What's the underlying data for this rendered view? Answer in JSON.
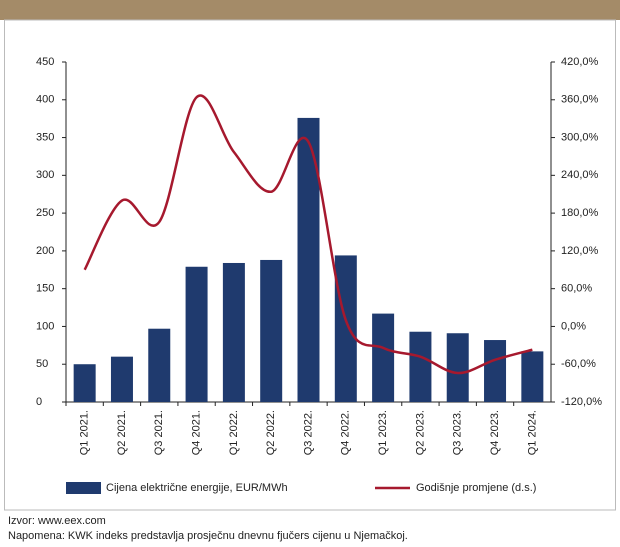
{
  "chart_data": {
    "type": "bar_line",
    "categories": [
      "Q1 2021.",
      "Q2 2021.",
      "Q3 2021.",
      "Q4 2021.",
      "Q1 2022.",
      "Q2 2022.",
      "Q3 2022.",
      "Q4 2022.",
      "Q1 2023.",
      "Q2 2023.",
      "Q3 2023.",
      "Q4 2023.",
      "Q1 2024."
    ],
    "series": [
      {
        "name": "Cijena električne energije, EUR/MWh",
        "color": "#1f3a6e",
        "type": "bar",
        "values": [
          50,
          60,
          97,
          179,
          184,
          188,
          376,
          194,
          117,
          93,
          91,
          82,
          67
        ]
      },
      {
        "name": "Godišnje promjene (d.s.)",
        "color": "#a6192e",
        "type": "line",
        "axis": "y2",
        "values": [
          90,
          200,
          166,
          364,
          277,
          214,
          293,
          10,
          -34,
          -48,
          -74,
          -53,
          -37
        ]
      }
    ],
    "ylim": [
      0,
      450
    ],
    "yticks": [
      0,
      50,
      100,
      150,
      200,
      250,
      300,
      350,
      400,
      450
    ],
    "y2lim": [
      -120,
      420
    ],
    "y2ticks": [
      {
        "value": -120,
        "label": "-120,0%"
      },
      {
        "value": -60,
        "label": "-60,0%"
      },
      {
        "value": 0,
        "label": "0,0%"
      },
      {
        "value": 60,
        "label": "60,0%"
      },
      {
        "value": 120,
        "label": "120,0%"
      },
      {
        "value": 180,
        "label": "180,0%"
      },
      {
        "value": 240,
        "label": "240,0%"
      },
      {
        "value": 300,
        "label": "300,0%"
      },
      {
        "value": 360,
        "label": "360,0%"
      },
      {
        "value": 420,
        "label": "420,0%"
      }
    ],
    "source": "Izvor: www.eex.com",
    "note": "Napomena: KWK indeks predstavlja prosječnu dnevnu fjučers cijenu u Njemačkoj."
  }
}
